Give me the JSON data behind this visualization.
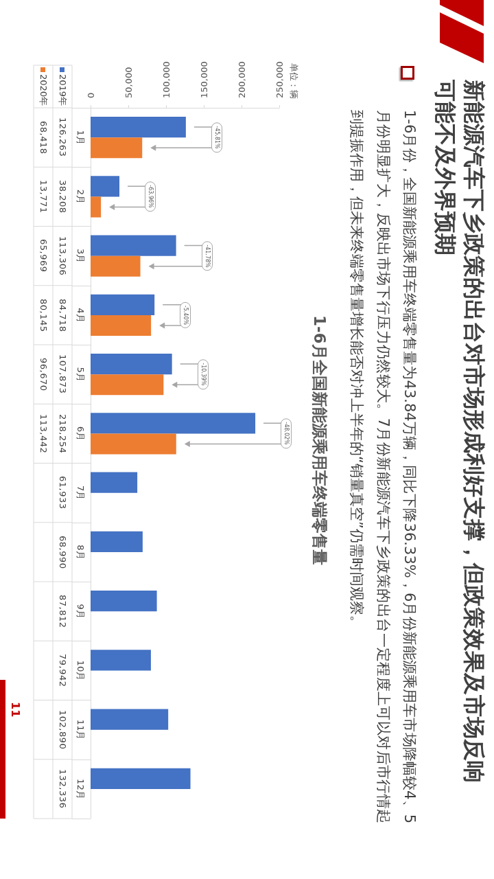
{
  "chart_data": {
    "type": "bar",
    "orientation": "horizontal",
    "title": "新能源汽车下乡政策的出台对市场形成利好支撑，但政策效果及市场反响可能不及外界预期",
    "subtitle": "1-6月全国新能源乘用车终端零售量",
    "categories": [
      "1月",
      "2月",
      "3月",
      "4月",
      "5月",
      "6月",
      "7月",
      "8月",
      "9月",
      "10月",
      "11月",
      "12月"
    ],
    "series": [
      {
        "name": "2019年",
        "color": "#4472c4",
        "values": [
          126263,
          38208,
          113306,
          84718,
          107873,
          218254,
          61933,
          68990,
          87812,
          79942,
          102890,
          132336
        ],
        "value_labels": [
          "126,263",
          "38,208",
          "113,306",
          "84,718",
          "107,873",
          "218,254",
          "61,933",
          "68,990",
          "87,812",
          "79,942",
          "102,890",
          "132,336"
        ]
      },
      {
        "name": "2020年",
        "color": "#ed7d31",
        "values": [
          68418,
          13771,
          65969,
          80145,
          96670,
          113442,
          null,
          null,
          null,
          null,
          null,
          null
        ],
        "value_labels": [
          "68,418",
          "13,771",
          "65,969",
          "80,145",
          "96,670",
          "113,442",
          null,
          null,
          null,
          null,
          null,
          null
        ]
      }
    ],
    "xlim": [
      0,
      250000
    ],
    "xticks": [
      0,
      {
        "value": 50000,
        "label": "50,000"
      },
      {
        "value": 100000,
        "label": "100,000"
      },
      {
        "value": 150000,
        "label": "150,000"
      },
      {
        "value": 200000,
        "label": "200,000"
      },
      {
        "value": 250000,
        "label": "250,000"
      }
    ],
    "grid": false,
    "legend": "top left",
    "annotations": [
      "1-6月份，全国新能源乘用车终端零售量为43.84万辆，同比下降36.33%，6月份新能源乘用车市场降幅较4、5月份明显扩大，反映出市场下行压力仍然较大。7月份新能源汽车下乡政策的出台一定程度上可以对后市行情起到提振作用，但未来终端零售量增长能否对冲上半年的“销量真空”仍需时间观察。",
      {
        "text": "-45.81%",
        "y": "1月"
      },
      {
        "text": "-63.96%",
        "y": "2月"
      },
      {
        "text": "-41.78%",
        "y": "3月"
      },
      {
        "text": "-5.40%",
        "y": "4月"
      },
      {
        "text": "-10.39%",
        "y": "5月"
      },
      {
        "text": "-48.02%",
        "y": "6月"
      },
      "单位：辆",
      "11"
    ]
  }
}
